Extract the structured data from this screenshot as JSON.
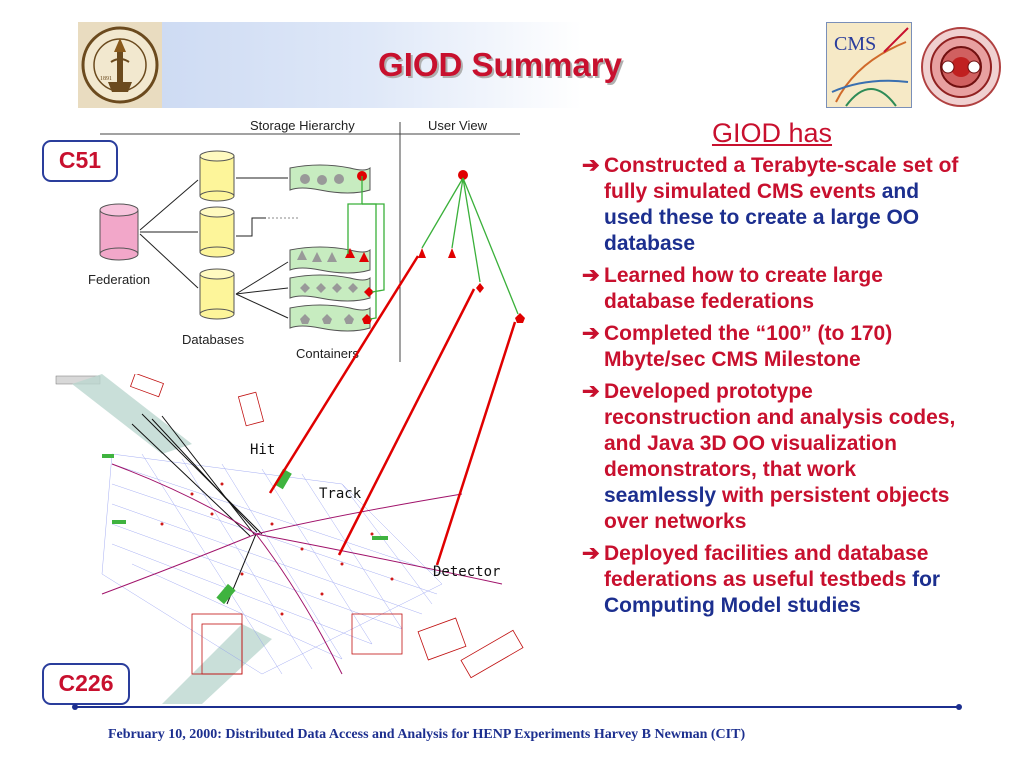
{
  "slide": {
    "title": "GIOD Summary",
    "accent_red": "#c8102e",
    "accent_blue": "#1c2f8f"
  },
  "header": {
    "caltech_logo_label": "CALIFORNIA INSTITUTE OF TECHNOLOGY",
    "caltech_logo_year": "1891",
    "cms_logo_label": "CMS"
  },
  "diagram": {
    "storage_hierarchy_label": "Storage Hierarchy",
    "user_view_label": "User View",
    "federation_label": "Federation",
    "databases_label": "Databases",
    "containers_label": "Containers",
    "hit_label": "Hit",
    "track_label": "Track",
    "detector_label": "Detector",
    "box_c51": "C51",
    "box_c226": "C226"
  },
  "summary": {
    "heading": "GIOD has",
    "bullets": [
      {
        "parts": [
          {
            "text": "Constructed a Terabyte-scale set of fully simulated CMS events ",
            "style": "red"
          },
          {
            "text": "and used these to create a large OO database",
            "style": "blue"
          }
        ]
      },
      {
        "parts": [
          {
            "text": "Learned how to create large database federations",
            "style": "red"
          }
        ]
      },
      {
        "parts": [
          {
            "text": "Completed the “100” (to 170) Mbyte/sec CMS Milestone",
            "style": "red"
          }
        ]
      },
      {
        "parts": [
          {
            "text": "Developed prototype reconstruction and analysis codes, and Java 3D OO visualization demonstrators, that work ",
            "style": "red"
          },
          {
            "text": "seamlessly",
            "style": "blue"
          },
          {
            "text": " with persistent objects over networks",
            "style": "red"
          }
        ]
      },
      {
        "parts": [
          {
            "text": "Deployed facilities and database federations as useful testbeds ",
            "style": "red"
          },
          {
            "text": "for Computing Model studies",
            "style": "blue"
          }
        ]
      }
    ]
  },
  "footer": {
    "text": "February 10, 2000:  Distributed Data Access and Analysis for HENP Experiments      Harvey B Newman (CIT)"
  }
}
